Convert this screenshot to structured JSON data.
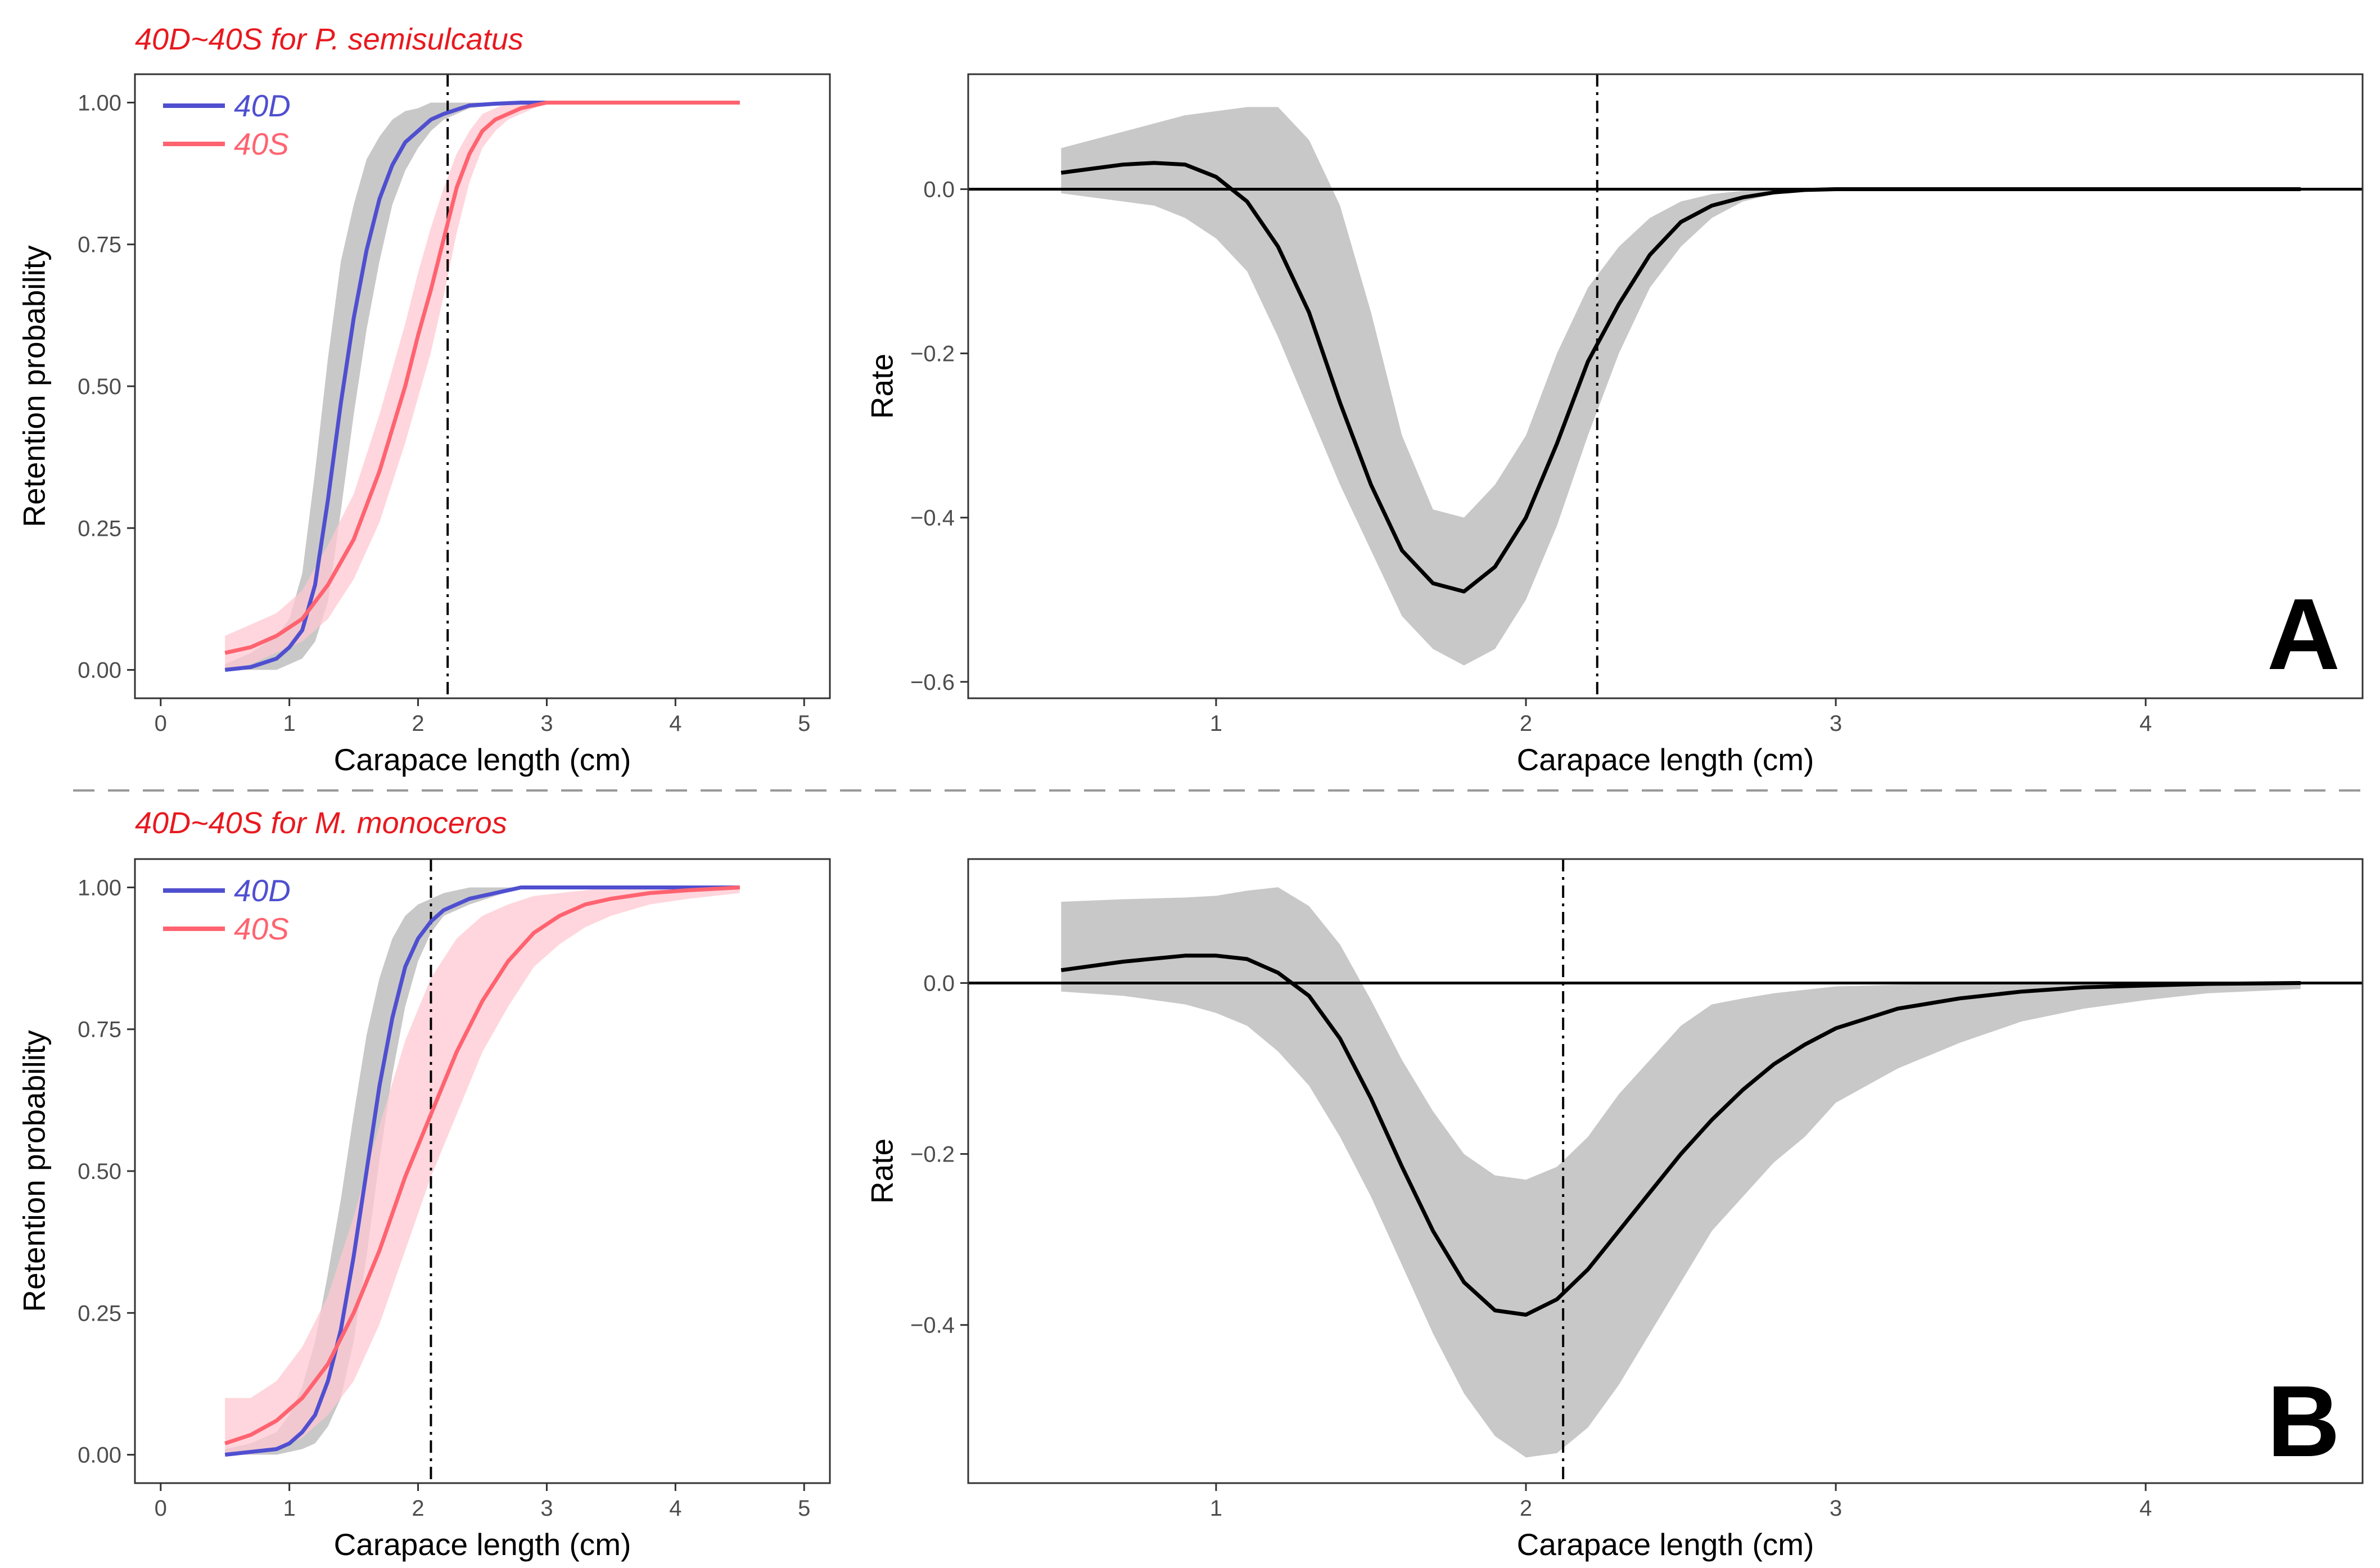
{
  "colors": {
    "accent_title": "#e8191f",
    "d40": "#4f4fd0",
    "s40": "#ff6370",
    "band_grey": "#c8c8c8",
    "band_pink": "#ffc8d2",
    "divider": "#999999"
  },
  "chart_data": [
    {
      "id": "A-left",
      "type": "line",
      "title": "40D~40S for P. semisulcatus",
      "xlabel": "Carapace length (cm)",
      "ylabel": "Retention probability",
      "xlim": [
        -0.2,
        5.2
      ],
      "ylim": [
        -0.05,
        1.05
      ],
      "xticks": [
        0,
        1,
        2,
        3,
        4,
        5
      ],
      "xtick_labels": [
        "0",
        "1",
        "2",
        "3",
        "4",
        "5"
      ],
      "yticks": [
        0,
        0.25,
        0.5,
        0.75,
        1.0
      ],
      "ytick_labels": [
        "0.00",
        "0.25",
        "0.50",
        "0.75",
        "1.00"
      ],
      "vline": 2.23,
      "legend": {
        "position": "top-left",
        "entries": [
          "40D",
          "40S"
        ]
      },
      "series": [
        {
          "name": "40D",
          "color": "#4f4fd0",
          "x": [
            0.5,
            0.7,
            0.9,
            1.0,
            1.1,
            1.2,
            1.3,
            1.4,
            1.5,
            1.6,
            1.7,
            1.8,
            1.9,
            2.0,
            2.1,
            2.2,
            2.4,
            2.6,
            2.8,
            3.0,
            3.5,
            4.0,
            4.5
          ],
          "y": [
            0.0,
            0.005,
            0.02,
            0.04,
            0.07,
            0.15,
            0.3,
            0.47,
            0.62,
            0.74,
            0.83,
            0.89,
            0.93,
            0.95,
            0.97,
            0.98,
            0.995,
            0.998,
            1.0,
            1.0,
            1.0,
            1.0,
            1.0
          ],
          "lower": [
            0.0,
            0.0,
            0.0,
            0.01,
            0.02,
            0.05,
            0.12,
            0.28,
            0.45,
            0.6,
            0.72,
            0.82,
            0.88,
            0.92,
            0.95,
            0.97,
            0.99,
            0.995,
            1.0,
            1.0,
            1.0,
            1.0,
            1.0
          ],
          "upper": [
            0.01,
            0.03,
            0.06,
            0.09,
            0.17,
            0.35,
            0.55,
            0.72,
            0.82,
            0.9,
            0.94,
            0.97,
            0.985,
            0.99,
            1.0,
            1.0,
            1.0,
            1.0,
            1.0,
            1.0,
            1.0,
            1.0,
            1.0
          ]
        },
        {
          "name": "40S",
          "color": "#ff6370",
          "x": [
            0.5,
            0.7,
            0.9,
            1.1,
            1.3,
            1.5,
            1.7,
            1.9,
            2.0,
            2.1,
            2.2,
            2.3,
            2.4,
            2.5,
            2.6,
            2.7,
            2.8,
            3.0,
            3.2,
            3.5,
            4.0,
            4.5
          ],
          "y": [
            0.03,
            0.04,
            0.06,
            0.09,
            0.15,
            0.23,
            0.35,
            0.5,
            0.59,
            0.67,
            0.76,
            0.85,
            0.91,
            0.95,
            0.97,
            0.98,
            0.99,
            1.0,
            1.0,
            1.0,
            1.0,
            1.0
          ],
          "lower": [
            0.0,
            0.01,
            0.03,
            0.05,
            0.09,
            0.16,
            0.26,
            0.4,
            0.48,
            0.56,
            0.66,
            0.77,
            0.86,
            0.92,
            0.95,
            0.97,
            0.98,
            1.0,
            1.0,
            1.0,
            1.0,
            1.0
          ],
          "upper": [
            0.06,
            0.08,
            0.1,
            0.14,
            0.22,
            0.31,
            0.45,
            0.61,
            0.7,
            0.78,
            0.85,
            0.91,
            0.95,
            0.98,
            0.99,
            1.0,
            1.0,
            1.0,
            1.0,
            1.0,
            1.0,
            1.0
          ]
        }
      ]
    },
    {
      "id": "A-right",
      "type": "line",
      "panel_label": "A",
      "xlabel": "Carapace length (cm)",
      "ylabel": "Rate",
      "xlim": [
        0.2,
        4.7
      ],
      "ylim": [
        -0.62,
        0.14
      ],
      "xticks": [
        1,
        2,
        3,
        4
      ],
      "xtick_labels": [
        "1",
        "2",
        "3",
        "4"
      ],
      "yticks": [
        0,
        -0.2,
        -0.4,
        -0.6
      ],
      "ytick_labels": [
        "0.0",
        "−0.2",
        "−0.4",
        "−0.6"
      ],
      "hline": 0,
      "vline": 2.23,
      "series": [
        {
          "name": "difference",
          "color": "#000000",
          "x": [
            0.5,
            0.6,
            0.7,
            0.8,
            0.9,
            1.0,
            1.1,
            1.2,
            1.3,
            1.4,
            1.5,
            1.6,
            1.7,
            1.8,
            1.9,
            2.0,
            2.1,
            2.2,
            2.3,
            2.4,
            2.5,
            2.6,
            2.7,
            2.8,
            2.9,
            3.0,
            3.2,
            3.5,
            4.0,
            4.5
          ],
          "y": [
            0.02,
            0.025,
            0.03,
            0.032,
            0.03,
            0.015,
            -0.015,
            -0.07,
            -0.15,
            -0.26,
            -0.36,
            -0.44,
            -0.48,
            -0.49,
            -0.46,
            -0.4,
            -0.31,
            -0.21,
            -0.14,
            -0.08,
            -0.04,
            -0.02,
            -0.01,
            -0.004,
            -0.001,
            0.0,
            0.0,
            0.0,
            0.0,
            0.0
          ],
          "lower": [
            -0.005,
            -0.01,
            -0.015,
            -0.02,
            -0.035,
            -0.06,
            -0.1,
            -0.18,
            -0.27,
            -0.36,
            -0.44,
            -0.52,
            -0.56,
            -0.58,
            -0.56,
            -0.5,
            -0.41,
            -0.3,
            -0.2,
            -0.12,
            -0.07,
            -0.035,
            -0.015,
            -0.006,
            -0.002,
            0.0,
            0.0,
            0.0,
            0.0,
            0.0
          ],
          "upper": [
            0.05,
            0.06,
            0.07,
            0.08,
            0.09,
            0.095,
            0.1,
            0.1,
            0.06,
            -0.02,
            -0.15,
            -0.3,
            -0.39,
            -0.4,
            -0.36,
            -0.3,
            -0.2,
            -0.12,
            -0.07,
            -0.035,
            -0.015,
            -0.006,
            -0.002,
            -0.001,
            0.0,
            0.0,
            0.0,
            0.0,
            0.0,
            0.0
          ]
        }
      ]
    },
    {
      "id": "B-left",
      "type": "line",
      "title": "40D~40S for M. monoceros",
      "xlabel": "Carapace length (cm)",
      "ylabel": "Retention probability",
      "xlim": [
        -0.2,
        5.2
      ],
      "ylim": [
        -0.05,
        1.05
      ],
      "xticks": [
        0,
        1,
        2,
        3,
        4,
        5
      ],
      "xtick_labels": [
        "0",
        "1",
        "2",
        "3",
        "4",
        "5"
      ],
      "yticks": [
        0,
        0.25,
        0.5,
        0.75,
        1.0
      ],
      "ytick_labels": [
        "0.00",
        "0.25",
        "0.50",
        "0.75",
        "1.00"
      ],
      "vline": 2.1,
      "legend": {
        "position": "top-left",
        "entries": [
          "40D",
          "40S"
        ]
      },
      "series": [
        {
          "name": "40D",
          "color": "#4f4fd0",
          "x": [
            0.5,
            0.7,
            0.9,
            1.0,
            1.1,
            1.2,
            1.3,
            1.4,
            1.5,
            1.6,
            1.7,
            1.8,
            1.9,
            2.0,
            2.1,
            2.2,
            2.4,
            2.6,
            2.8,
            3.0,
            3.5,
            4.0,
            4.5
          ],
          "y": [
            0.0,
            0.005,
            0.01,
            0.02,
            0.04,
            0.07,
            0.13,
            0.22,
            0.35,
            0.5,
            0.65,
            0.77,
            0.86,
            0.91,
            0.94,
            0.96,
            0.98,
            0.99,
            1.0,
            1.0,
            1.0,
            1.0,
            1.0
          ],
          "lower": [
            0.0,
            0.0,
            0.0,
            0.005,
            0.01,
            0.02,
            0.05,
            0.1,
            0.2,
            0.35,
            0.52,
            0.67,
            0.79,
            0.87,
            0.92,
            0.95,
            0.97,
            0.985,
            1.0,
            1.0,
            1.0,
            1.0,
            1.0
          ],
          "upper": [
            0.01,
            0.02,
            0.04,
            0.07,
            0.12,
            0.2,
            0.32,
            0.45,
            0.6,
            0.74,
            0.84,
            0.91,
            0.95,
            0.97,
            0.98,
            0.99,
            1.0,
            1.0,
            1.0,
            1.0,
            1.0,
            1.0,
            1.0
          ]
        },
        {
          "name": "40S",
          "color": "#ff6370",
          "x": [
            0.5,
            0.7,
            0.9,
            1.1,
            1.3,
            1.5,
            1.7,
            1.9,
            2.1,
            2.3,
            2.5,
            2.7,
            2.9,
            3.1,
            3.3,
            3.5,
            3.8,
            4.1,
            4.5
          ],
          "y": [
            0.02,
            0.035,
            0.06,
            0.1,
            0.16,
            0.25,
            0.36,
            0.49,
            0.6,
            0.71,
            0.8,
            0.87,
            0.92,
            0.95,
            0.97,
            0.98,
            0.99,
            0.995,
            1.0
          ],
          "lower": [
            0.0,
            0.0,
            0.01,
            0.03,
            0.07,
            0.13,
            0.23,
            0.36,
            0.49,
            0.6,
            0.71,
            0.79,
            0.86,
            0.9,
            0.93,
            0.95,
            0.97,
            0.98,
            0.99
          ],
          "upper": [
            0.1,
            0.1,
            0.13,
            0.19,
            0.28,
            0.42,
            0.58,
            0.73,
            0.84,
            0.91,
            0.95,
            0.97,
            0.985,
            0.99,
            0.995,
            1.0,
            1.0,
            1.0,
            1.0
          ]
        }
      ]
    },
    {
      "id": "B-right",
      "type": "line",
      "panel_label": "B",
      "xlabel": "Carapace length (cm)",
      "ylabel": "Rate",
      "xlim": [
        0.2,
        4.7
      ],
      "ylim": [
        -0.585,
        0.145
      ],
      "xticks": [
        1,
        2,
        3,
        4
      ],
      "xtick_labels": [
        "1",
        "2",
        "3",
        "4"
      ],
      "yticks": [
        0,
        -0.2,
        -0.4
      ],
      "ytick_labels": [
        "0.0",
        "−0.2",
        "−0.4"
      ],
      "hline": 0,
      "vline": 2.12,
      "series": [
        {
          "name": "difference",
          "color": "#000000",
          "x": [
            0.5,
            0.7,
            0.9,
            1.0,
            1.1,
            1.2,
            1.3,
            1.4,
            1.5,
            1.6,
            1.7,
            1.8,
            1.9,
            2.0,
            2.1,
            2.2,
            2.3,
            2.4,
            2.5,
            2.6,
            2.7,
            2.8,
            2.9,
            3.0,
            3.2,
            3.4,
            3.6,
            3.8,
            4.0,
            4.2,
            4.5
          ],
          "y": [
            0.015,
            0.025,
            0.032,
            0.032,
            0.028,
            0.012,
            -0.015,
            -0.065,
            -0.135,
            -0.215,
            -0.29,
            -0.35,
            -0.383,
            -0.388,
            -0.37,
            -0.335,
            -0.29,
            -0.245,
            -0.2,
            -0.16,
            -0.125,
            -0.095,
            -0.072,
            -0.053,
            -0.03,
            -0.018,
            -0.01,
            -0.005,
            -0.003,
            -0.001,
            0.0
          ],
          "lower": [
            -0.01,
            -0.015,
            -0.025,
            -0.035,
            -0.05,
            -0.08,
            -0.12,
            -0.18,
            -0.25,
            -0.33,
            -0.41,
            -0.48,
            -0.53,
            -0.555,
            -0.55,
            -0.52,
            -0.47,
            -0.41,
            -0.35,
            -0.29,
            -0.25,
            -0.21,
            -0.18,
            -0.14,
            -0.1,
            -0.07,
            -0.045,
            -0.03,
            -0.02,
            -0.012,
            -0.007
          ],
          "upper": [
            0.095,
            0.098,
            0.1,
            0.102,
            0.108,
            0.112,
            0.09,
            0.045,
            -0.02,
            -0.09,
            -0.15,
            -0.2,
            -0.225,
            -0.23,
            -0.215,
            -0.18,
            -0.13,
            -0.09,
            -0.05,
            -0.025,
            -0.018,
            -0.012,
            -0.008,
            -0.004,
            -0.002,
            -0.001,
            0.0,
            0.0,
            0.0,
            0.0,
            0.0
          ]
        }
      ]
    }
  ]
}
